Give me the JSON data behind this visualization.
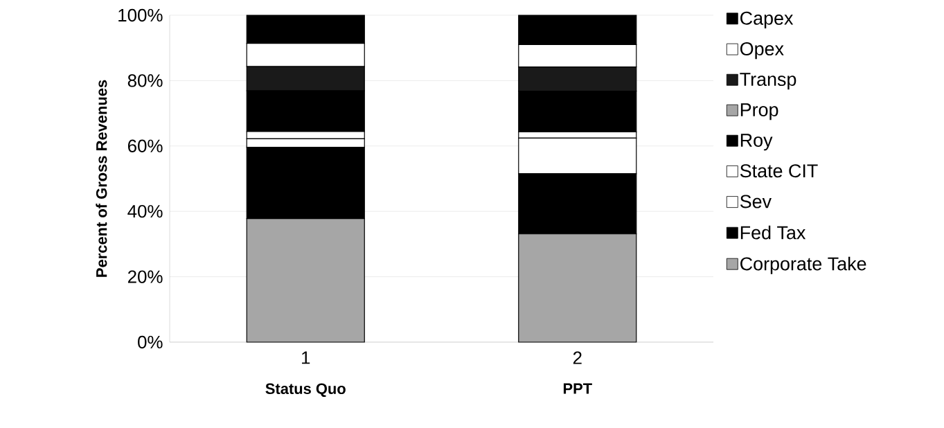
{
  "chart_data": {
    "type": "bar",
    "stacked": true,
    "ylabel": "Percent of Gross Revenues",
    "categories": [
      "1",
      "2"
    ],
    "annotations": [
      "**Status Quo**",
      "**PPT**"
    ],
    "ylim": [
      0,
      100
    ],
    "yticks": [
      {
        "value": 0,
        "label": "0%"
      },
      {
        "value": 20,
        "label": "20%"
      },
      {
        "value": 40,
        "label": "40%"
      },
      {
        "value": 60,
        "label": "60%"
      },
      {
        "value": 80,
        "label": "80%"
      },
      {
        "value": 100,
        "label": "100%"
      }
    ],
    "grid": "y",
    "legend": "right",
    "series": [
      {
        "name": "Corporate Take",
        "color": "#a6a6a6",
        "values": [
          37.8,
          33.1
        ]
      },
      {
        "name": "Fed Tax",
        "color": "#000000",
        "values": [
          21.8,
          18.4
        ]
      },
      {
        "name": "Sev",
        "color": "#ffffff",
        "values": [
          2.6,
          10.9
        ]
      },
      {
        "name": "State CIT",
        "color": "#ffffff",
        "values": [
          2.2,
          1.9
        ]
      },
      {
        "name": "Roy",
        "color": "#000000",
        "values": [
          12.5,
          12.5
        ]
      },
      {
        "name": "Prop",
        "color": "#a6a6a6",
        "values": [
          0,
          0
        ]
      },
      {
        "name": "Transp",
        "color": "#1a1a1a",
        "values": [
          7.4,
          7.4
        ]
      },
      {
        "name": "Opex",
        "color": "#ffffff",
        "values": [
          7.1,
          6.8
        ]
      },
      {
        "name": "Capex",
        "color": "#000000",
        "values": [
          8.6,
          9.0
        ]
      }
    ]
  }
}
